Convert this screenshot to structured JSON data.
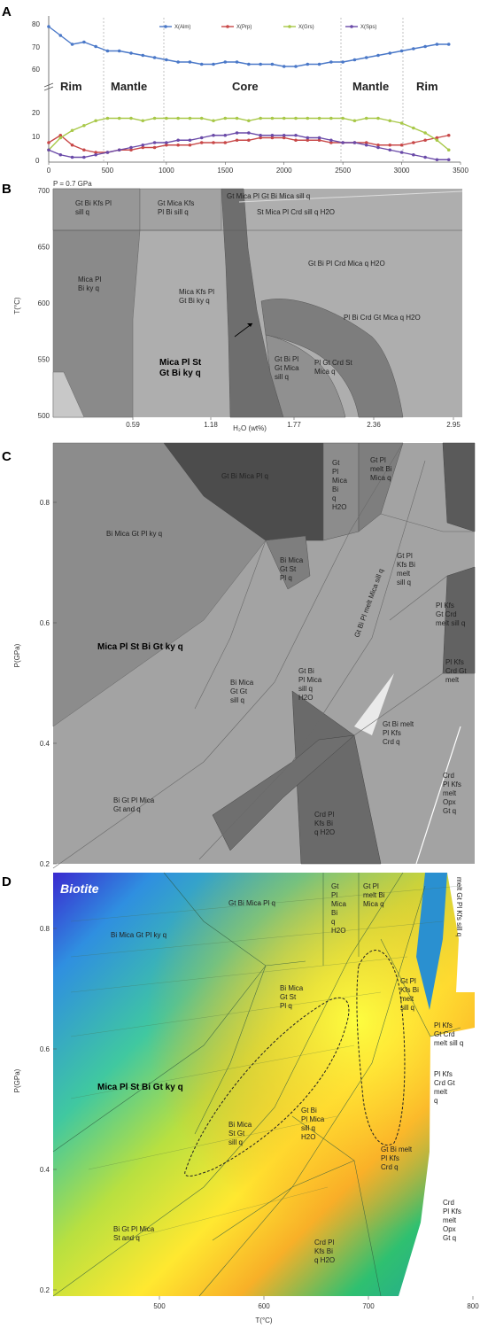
{
  "panels": {
    "a": {
      "letter": "A",
      "zones": [
        "Rim",
        "Mantle",
        "Core",
        "Mantle",
        "Rim"
      ],
      "x_ticks": [
        "0",
        "500",
        "1000",
        "1500",
        "2000",
        "2500",
        "3000",
        "3500"
      ],
      "upper_y_ticks": [
        "80",
        "70",
        "60"
      ],
      "lower_y_ticks": [
        "20",
        "10",
        "0"
      ],
      "legend": [
        "X(Alm)",
        "X(Prp)",
        "X(Grs)",
        "X(Sps)"
      ],
      "colors": {
        "alm": "#4a78c8",
        "prp": "#c84848",
        "grs": "#a8c848",
        "sps": "#6a4aa8"
      }
    },
    "b": {
      "letter": "B",
      "pressure_note": "P = 0.7 GPa",
      "x_label": "H₂O (wt%)",
      "y_label": "T(°C)",
      "x_ticks": [
        "0.59",
        "1.18",
        "1.77",
        "2.36",
        "2.95"
      ],
      "y_ticks": [
        "700",
        "650",
        "600",
        "550",
        "500"
      ],
      "fields": {
        "f1": "Gt Bi Kfs Pl\nsill q",
        "f2": "Gt Mica Kfs\nPl Bi sill q",
        "f3": "Gt Mica Pl Gt Bi Mica sill q",
        "f4": "St Mica Pl Crd sill q H2O",
        "f5": "Gt Bi Pl Crd Mica q H2O",
        "f6": "Mica Pl\nBi ky q",
        "f7": "Mica Kfs Pl\nGt Bi ky q",
        "f8": "Pl Bi Crd Gt Mica q H2O",
        "f9": "Gt Bi Pl\nGt Mica\nsill q",
        "f10": "Pl Gt Crd St\nMica q",
        "mica_pl_st": "Mica Pl St\nGt Bi ky q"
      }
    },
    "c": {
      "letter": "C",
      "y_label": "P(GPa)",
      "y_ticks": [
        "0.8",
        "0.6",
        "0.4",
        "0.2"
      ],
      "fields": {
        "c1": "Gt Bi Mica Pl q",
        "c2": "Bi Mica Gt Pl ky q",
        "c3": "Gt\nPl\nMica\nBi\nq\nH2O",
        "c4": "Gt Pl\nmelt Bi\nMica q",
        "c5": "Bi Mica\nGt St\nPl q",
        "c6": "Gt Pl\nKfs Bi\nmelt\nsill q",
        "c7": "Pl Kfs\nGt Crd\nmelt sill q",
        "c8": "Pl Kfs\nCrd Gt\nmelt",
        "c9": "Mica Pl St Bi Gt ky q",
        "c10": "Bi Mica\nGt Gt\nsill q",
        "c11": "Gt Bi\nPl Mica\nsill q\nH2O",
        "c12": "Gt Bi melt\nPl Kfs\nCrd q",
        "c13": "Crd\nPl Kfs\nmelt\nOpx\nGt q",
        "c14": "Bi Gt Pl Mica\nGt and q",
        "c15": "Crd Pl\nKfs Bi\nq H2O",
        "c16": "Gt Bi Pl melt Mica sill q"
      }
    },
    "d": {
      "letter": "D",
      "title": "Biotite",
      "y_label": "P(GPa)",
      "x_label": "T(°C)",
      "x_ticks": [
        "500",
        "600",
        "700",
        "800"
      ],
      "y_ticks": [
        "0.8",
        "0.6",
        "0.4",
        "0.2"
      ],
      "fields": {
        "d1": "Gt Bi Mica Pl q",
        "d2": "Bi Mica Gt Pl ky q",
        "d3": "Gt\nPl\nMica\nBi\nq\nH2O",
        "d4": "Gt Pl\nmelt Bi\nMica q",
        "d5": "Bi Mica\nGt St\nPl q",
        "d6": "Gt Pl\nKfs Bi\nmelt\nsill q",
        "d7": "melt Gt Pl Kfs sill q",
        "d8": "Pl Kfs\nGt Crd\nmelt sill q",
        "d9": "Pl Kfs\nCrd Gt\nmelt\nq",
        "d10": "Mica Pl St Bi Gt ky q",
        "d11": "Bi Mica\nSt Gt\nsill q",
        "d12": "Gt Bi\nPl Mica\nsill q\nH2O",
        "d13": "Gt Bi melt\nPl Kfs\nCrd q",
        "d14": "Crd\nPl Kfs\nmelt\nOpx\nGt q",
        "d15": "Bi Gt Pl Mica\nSt and q",
        "d16": "Crd Pl\nKfs Bi\nq H2O"
      }
    }
  },
  "chart_data": [
    {
      "type": "line",
      "title": "",
      "xlabel": "",
      "ylabel": "",
      "xlim": [
        0,
        3500
      ],
      "x": [
        0,
        100,
        200,
        300,
        400,
        500,
        600,
        700,
        800,
        900,
        1000,
        1100,
        1200,
        1300,
        1400,
        1500,
        1600,
        1700,
        1800,
        1900,
        2000,
        2100,
        2200,
        2300,
        2400,
        2500,
        2600,
        2700,
        2800,
        2900,
        3000,
        3100,
        3200,
        3300,
        3400
      ],
      "series": [
        {
          "name": "X(Alm)",
          "color": "#4a78c8",
          "values": [
            82,
            78,
            74,
            75,
            73,
            71,
            71,
            70,
            69,
            68,
            67,
            66,
            66,
            65,
            65,
            66,
            66,
            65,
            65,
            65,
            64,
            64,
            65,
            65,
            66,
            66,
            67,
            68,
            69,
            70,
            71,
            72,
            73,
            74,
            74
          ]
        },
        {
          "name": "X(Prp)",
          "color": "#c84848",
          "values": [
            8,
            11,
            7,
            5,
            4,
            4,
            5,
            5,
            6,
            6,
            7,
            7,
            7,
            8,
            8,
            8,
            9,
            9,
            10,
            10,
            10,
            9,
            9,
            9,
            8,
            8,
            8,
            8,
            7,
            7,
            7,
            8,
            9,
            10,
            11
          ]
        },
        {
          "name": "X(Grs)",
          "color": "#a8c848",
          "values": [
            5,
            10,
            13,
            15,
            17,
            18,
            18,
            18,
            17,
            18,
            18,
            18,
            18,
            18,
            17,
            18,
            18,
            17,
            18,
            18,
            18,
            18,
            18,
            18,
            18,
            18,
            17,
            18,
            18,
            17,
            16,
            14,
            12,
            9,
            5
          ]
        },
        {
          "name": "X(Sps)",
          "color": "#6a4aa8",
          "values": [
            5,
            3,
            2,
            2,
            3,
            4,
            5,
            6,
            7,
            8,
            8,
            9,
            9,
            10,
            11,
            11,
            12,
            12,
            11,
            11,
            11,
            11,
            10,
            10,
            9,
            8,
            8,
            7,
            6,
            5,
            4,
            3,
            2,
            1,
            1
          ]
        }
      ]
    },
    {
      "type": "heatmap",
      "title": "",
      "xlabel": "H₂O (wt%)",
      "ylabel": "T(°C)",
      "xlim": [
        0,
        2.95
      ],
      "ylim": [
        500,
        700
      ]
    },
    {
      "type": "heatmap",
      "title": "",
      "xlabel": "",
      "ylabel": "P(GPa)",
      "xlim": [
        400,
        800
      ],
      "ylim": [
        0.2,
        0.9
      ]
    },
    {
      "type": "heatmap",
      "title": "Biotite",
      "xlabel": "T(°C)",
      "ylabel": "P(GPa)",
      "xlim": [
        400,
        800
      ],
      "ylim": [
        0.2,
        0.9
      ]
    }
  ]
}
